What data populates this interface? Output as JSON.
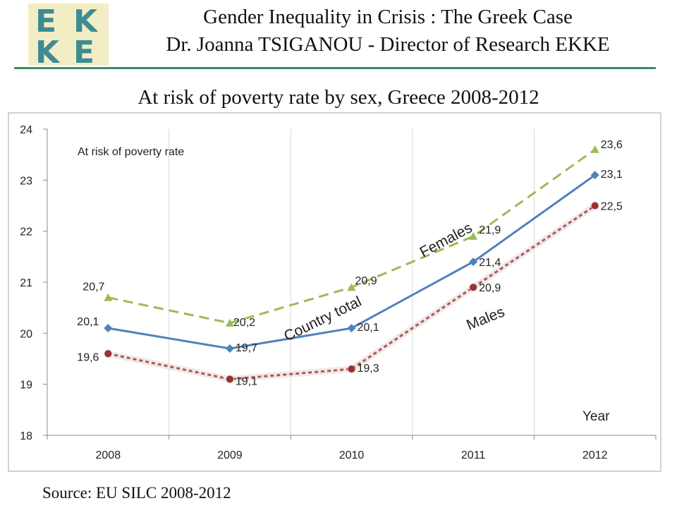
{
  "header": {
    "logo_letters": [
      "E",
      "K",
      "K",
      "E"
    ],
    "title": "Gender Inequality in Crisis : The Greek Case",
    "subtitle": "Dr. Joanna TSIGANOU - Director of Research EKKE"
  },
  "source": "Source: EU SILC 2008-2012",
  "colors": {
    "females": "#9bbb59",
    "total": "#4f81bd",
    "males": "#c0504d",
    "header_rule": "#3a8a66",
    "logo_bg": "#f3edc6",
    "logo_text": "#3d8c92"
  },
  "chart_data": {
    "type": "line",
    "title": "At risk of poverty rate by sex, Greece 2008-2012",
    "inner_label": "At risk of poverty rate",
    "xlabel": "Year",
    "ylabel": "",
    "categories": [
      "2008",
      "2009",
      "2010",
      "2011",
      "2012"
    ],
    "ylim": [
      18,
      24
    ],
    "yticks": [
      "18",
      "19",
      "20",
      "21",
      "22",
      "23",
      "24"
    ],
    "grid": "vertical",
    "series": [
      {
        "name": "Females",
        "values": [
          20.7,
          20.2,
          20.9,
          21.9,
          23.6
        ],
        "labels": [
          "20,7",
          "20,2",
          "20,9",
          "21,9",
          "23,6"
        ],
        "style": "dashed",
        "marker": "triangle"
      },
      {
        "name": "Country total",
        "values": [
          20.1,
          19.7,
          20.1,
          21.4,
          23.1
        ],
        "labels": [
          "20,1",
          "19,7",
          "20,1",
          "21,4",
          "23,1"
        ],
        "style": "solid",
        "marker": "diamond"
      },
      {
        "name": "Males",
        "values": [
          19.6,
          19.1,
          19.3,
          20.9,
          22.5
        ],
        "labels": [
          "19,6",
          "19,1",
          "19,3",
          "20,9",
          "22,5"
        ],
        "style": "dotted",
        "marker": "circle"
      }
    ]
  }
}
